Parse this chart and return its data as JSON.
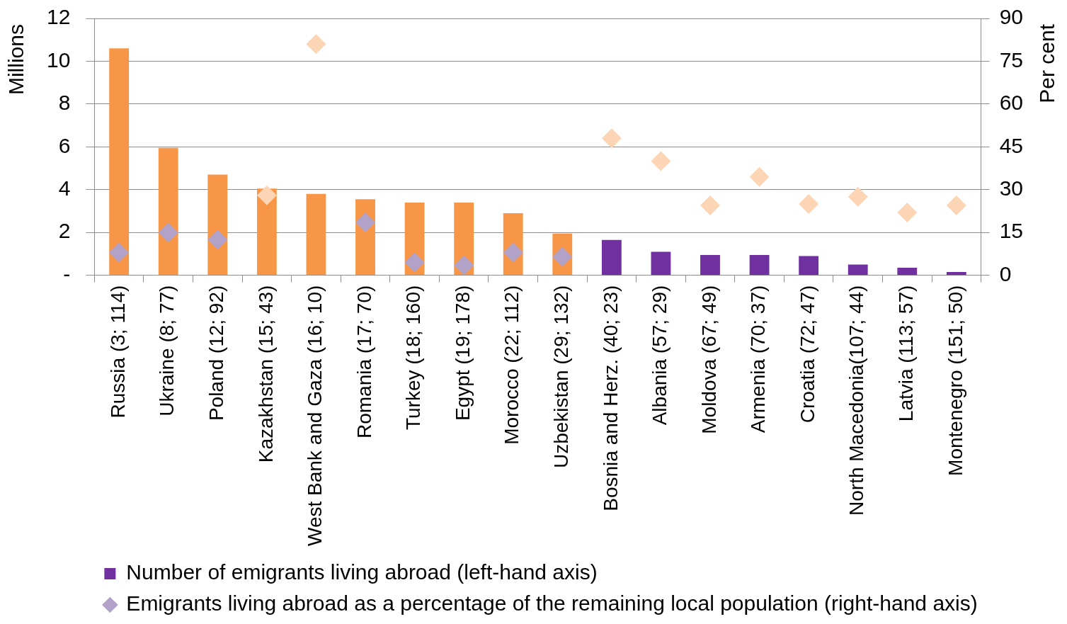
{
  "chart_data": {
    "type": "bar",
    "categories": [
      "Russia (3; 114)",
      "Ukraine (8; 77)",
      "Poland (12; 92)",
      "Kazakhstan (15; 43)",
      "West Bank and Gaza (16; 10)",
      "Romania (17; 70)",
      "Turkey (18; 160)",
      "Egypt (19; 178)",
      "Morocco (22; 112)",
      "Uzbekistan (29; 132)",
      "Bosnia and Herz. (40; 23)",
      "Albania (57; 29)",
      "Moldova (67; 49)",
      "Armenia (70; 37)",
      "Croatia (72; 47)",
      "North Macedonia(107; 44)",
      "Latvia (113; 57)",
      "Montenegro (151; 50)"
    ],
    "ylabel": "Millions",
    "y2label": "Per cent",
    "ylim": [
      0,
      12
    ],
    "yticks": [
      {
        "value": 0,
        "label": "-"
      },
      2,
      4,
      6,
      8,
      10,
      12
    ],
    "y2lim": [
      0,
      90
    ],
    "y2ticks": [
      0,
      15,
      30,
      45,
      60,
      75,
      90
    ],
    "grid": "y",
    "legend": "bottom",
    "series": [
      {
        "name": "Number of emigrants living abroad (left-hand axis)",
        "color": "#7030a0",
        "colors": [
          "#f79646",
          "#f79646",
          "#f79646",
          "#f79646",
          "#f79646",
          "#f79646",
          "#f79646",
          "#f79646",
          "#f79646",
          "#f79646",
          "#7030a0",
          "#7030a0",
          "#7030a0",
          "#7030a0",
          "#7030a0",
          "#7030a0",
          "#7030a0",
          "#7030a0"
        ],
        "values": [
          10.6,
          5.95,
          4.7,
          4.05,
          3.8,
          3.55,
          3.4,
          3.4,
          2.9,
          1.95,
          1.65,
          1.1,
          0.95,
          0.95,
          0.9,
          0.5,
          0.35,
          0.15
        ]
      },
      {
        "name": "Emigrants living abroad as a percentage of the remaining local population (right-hand axis)",
        "type": "scatter",
        "axis": "y2",
        "marker": "diamond",
        "color": "#b3a2c7",
        "colors": [
          "#b3a2c7",
          "#b3a2c7",
          "#b3a2c7",
          "#fcd5b5",
          "#fcd5b5",
          "#b3a2c7",
          "#b3a2c7",
          "#b3a2c7",
          "#b3a2c7",
          "#b3a2c7",
          "#fcd5b5",
          "#fcd5b5",
          "#fcd5b5",
          "#fcd5b5",
          "#fcd5b5",
          "#fcd5b5",
          "#fcd5b5",
          "#fcd5b5"
        ],
        "x": [
          "Russia (3; 114)",
          "Ukraine (8; 77)",
          "Poland (12; 92)",
          "Kazakhstan (15; 43)",
          "West Bank and Gaza (16; 10)",
          "Romania (17; 70)",
          "Turkey (18; 160)",
          "Egypt (19; 178)",
          "Morocco (22; 112)",
          "Uzbekistan (29; 132)",
          "Bosnia and Herz. (40; 23)",
          "Albania (57; 29)",
          "Moldova (67; 49)",
          "Armenia (70; 37)",
          "Croatia (72; 47)",
          "North Macedonia(107; 44)",
          "Latvia (113; 57)",
          "Montenegro (151; 50)"
        ],
        "values": [
          8,
          15,
          12.5,
          28,
          81,
          18.5,
          4.5,
          3.5,
          8,
          6.5,
          48,
          40,
          24.5,
          34.5,
          25,
          27.5,
          22,
          24.5
        ]
      }
    ]
  }
}
